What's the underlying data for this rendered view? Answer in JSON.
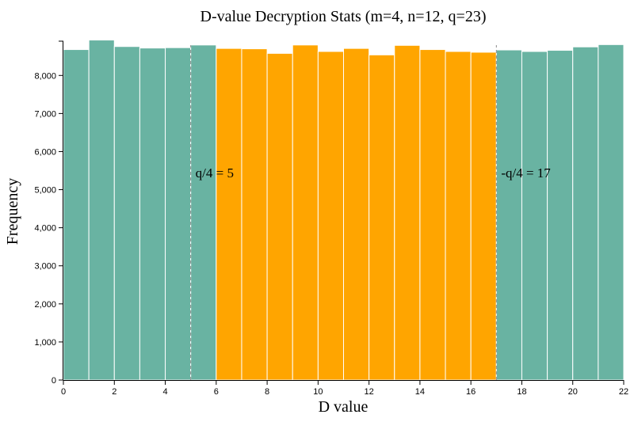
{
  "chart_data": {
    "type": "bar",
    "title": "D-value Decryption Stats (m=4, n=12, q=23)",
    "xlabel": "D value",
    "ylabel": "Frequency",
    "xlim": [
      0,
      22
    ],
    "ylim": [
      0,
      8900
    ],
    "x_ticks": [
      0,
      2,
      4,
      6,
      8,
      10,
      12,
      14,
      16,
      18,
      20,
      22
    ],
    "y_ticks": [
      0,
      1000,
      2000,
      3000,
      4000,
      5000,
      6000,
      7000,
      8000
    ],
    "y_tick_labels": [
      "0",
      "1,000",
      "2,000",
      "3,000",
      "4,000",
      "5,000",
      "6,000",
      "7,000",
      "8,000"
    ],
    "grid": false,
    "bin_width": 1,
    "x": [
      0,
      1,
      2,
      3,
      4,
      5,
      6,
      7,
      8,
      9,
      10,
      11,
      12,
      13,
      14,
      15,
      16,
      17,
      18,
      19,
      20,
      21
    ],
    "values": [
      8680,
      8930,
      8760,
      8720,
      8730,
      8800,
      8710,
      8700,
      8580,
      8800,
      8630,
      8710,
      8540,
      8790,
      8680,
      8630,
      8610,
      8670,
      8630,
      8660,
      8750,
      8810
    ],
    "colors": {
      "outside": "#69b3a2",
      "inside": "#ffa500"
    },
    "thresholds": [
      {
        "value": 5,
        "label": "q/4 = 5"
      },
      {
        "value": 17,
        "label": "-q/4 = 17"
      }
    ]
  }
}
